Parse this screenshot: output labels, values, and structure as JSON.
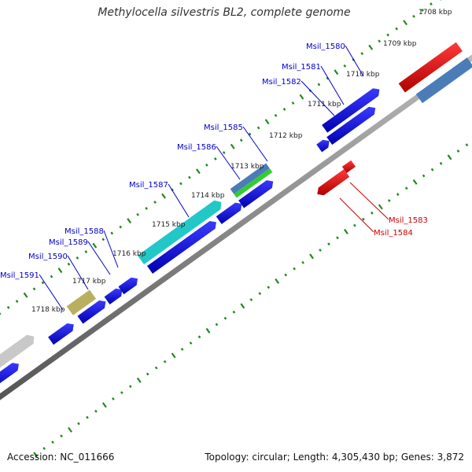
{
  "title": "Methylocella silvestris BL2, complete genome",
  "footer": {
    "accession": "Accession: NC_011666",
    "topology": "Topology: circular; Length: 4,305,430 bp; Genes: 3,872"
  },
  "ticks": [
    {
      "label": "1708 kbp"
    },
    {
      "label": "1709 kbp"
    },
    {
      "label": "1710 kbp"
    },
    {
      "label": "1711 kbp"
    },
    {
      "label": "1712 kbp"
    },
    {
      "label": "1713 kbp"
    },
    {
      "label": "1714 kbp"
    },
    {
      "label": "1715 kbp"
    },
    {
      "label": "1716 kbp"
    },
    {
      "label": "1717 kbp"
    },
    {
      "label": "1718 kbp"
    }
  ],
  "genes": [
    {
      "label": "Msil_1580",
      "color": "#0000cc"
    },
    {
      "label": "Msil_1581",
      "color": "#0000cc"
    },
    {
      "label": "Msil_1582",
      "color": "#0000cc"
    },
    {
      "label": "Msil_1585",
      "color": "#0000cc"
    },
    {
      "label": "Msil_1586",
      "color": "#0000cc"
    },
    {
      "label": "Msil_1587",
      "color": "#0000cc"
    },
    {
      "label": "Msil_1588",
      "color": "#0000cc"
    },
    {
      "label": "Msil_1589",
      "color": "#0000cc"
    },
    {
      "label": "Msil_1590",
      "color": "#0000cc"
    },
    {
      "label": "Msil_1591",
      "color": "#0000cc"
    },
    {
      "label": "Msil_1583",
      "color": "#cc0000"
    },
    {
      "label": "Msil_1584",
      "color": "#cc0000"
    }
  ],
  "colors": {
    "forward_gene": "#1010e0",
    "reverse_gene": "#e01010",
    "backbone": "#888888",
    "tick_dots": "#1f8a1f",
    "cyan_feature": "#22c8c8",
    "olive_feature": "#b8b060",
    "green_feature": "#33cc33",
    "steel_feature": "#4a7db8",
    "gray_feature": "#c8c8c8",
    "pink_feature": "#f07070"
  }
}
